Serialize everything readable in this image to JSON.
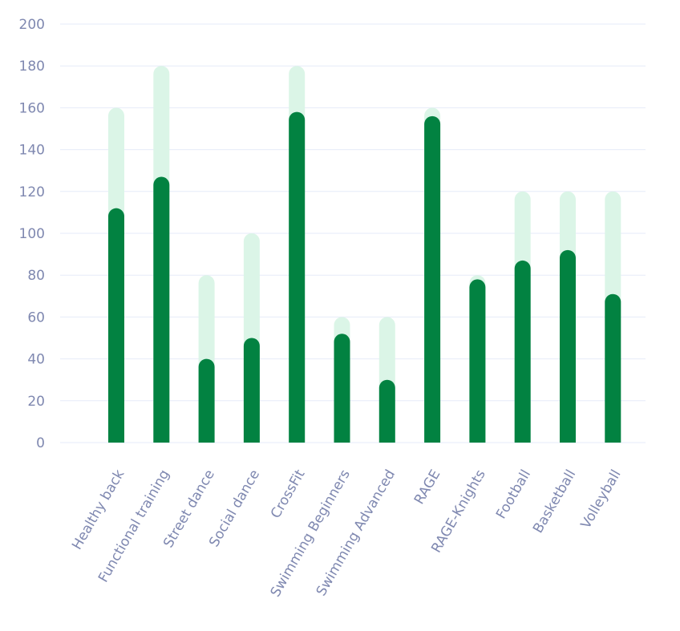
{
  "chart_data": {
    "type": "bar",
    "categories": [
      "Healthy back",
      "Functional training",
      "Street dance",
      "Social dance",
      "CrossFit",
      "Swimming Beginners",
      "Swimming Advanced",
      "RAGE",
      "RAGE-Knights",
      "Football",
      "Basketball",
      "Volleyball"
    ],
    "series": [
      {
        "values": [
          160,
          180,
          80,
          100,
          180,
          60,
          60,
          160,
          80,
          120,
          120,
          120
        ]
      },
      {
        "values": [
          112,
          127,
          40,
          50,
          158,
          52,
          30,
          156,
          78,
          87,
          92,
          71
        ]
      }
    ],
    "ylim": [
      0,
      200
    ],
    "yticks": [
      0,
      20,
      40,
      60,
      80,
      100,
      120,
      140,
      160,
      180,
      200
    ],
    "grid": true,
    "colors": {
      "capacity": "#dbf5e7",
      "value": "#028241",
      "grid": "#e6ebf8",
      "text": "#7f88b0"
    }
  }
}
